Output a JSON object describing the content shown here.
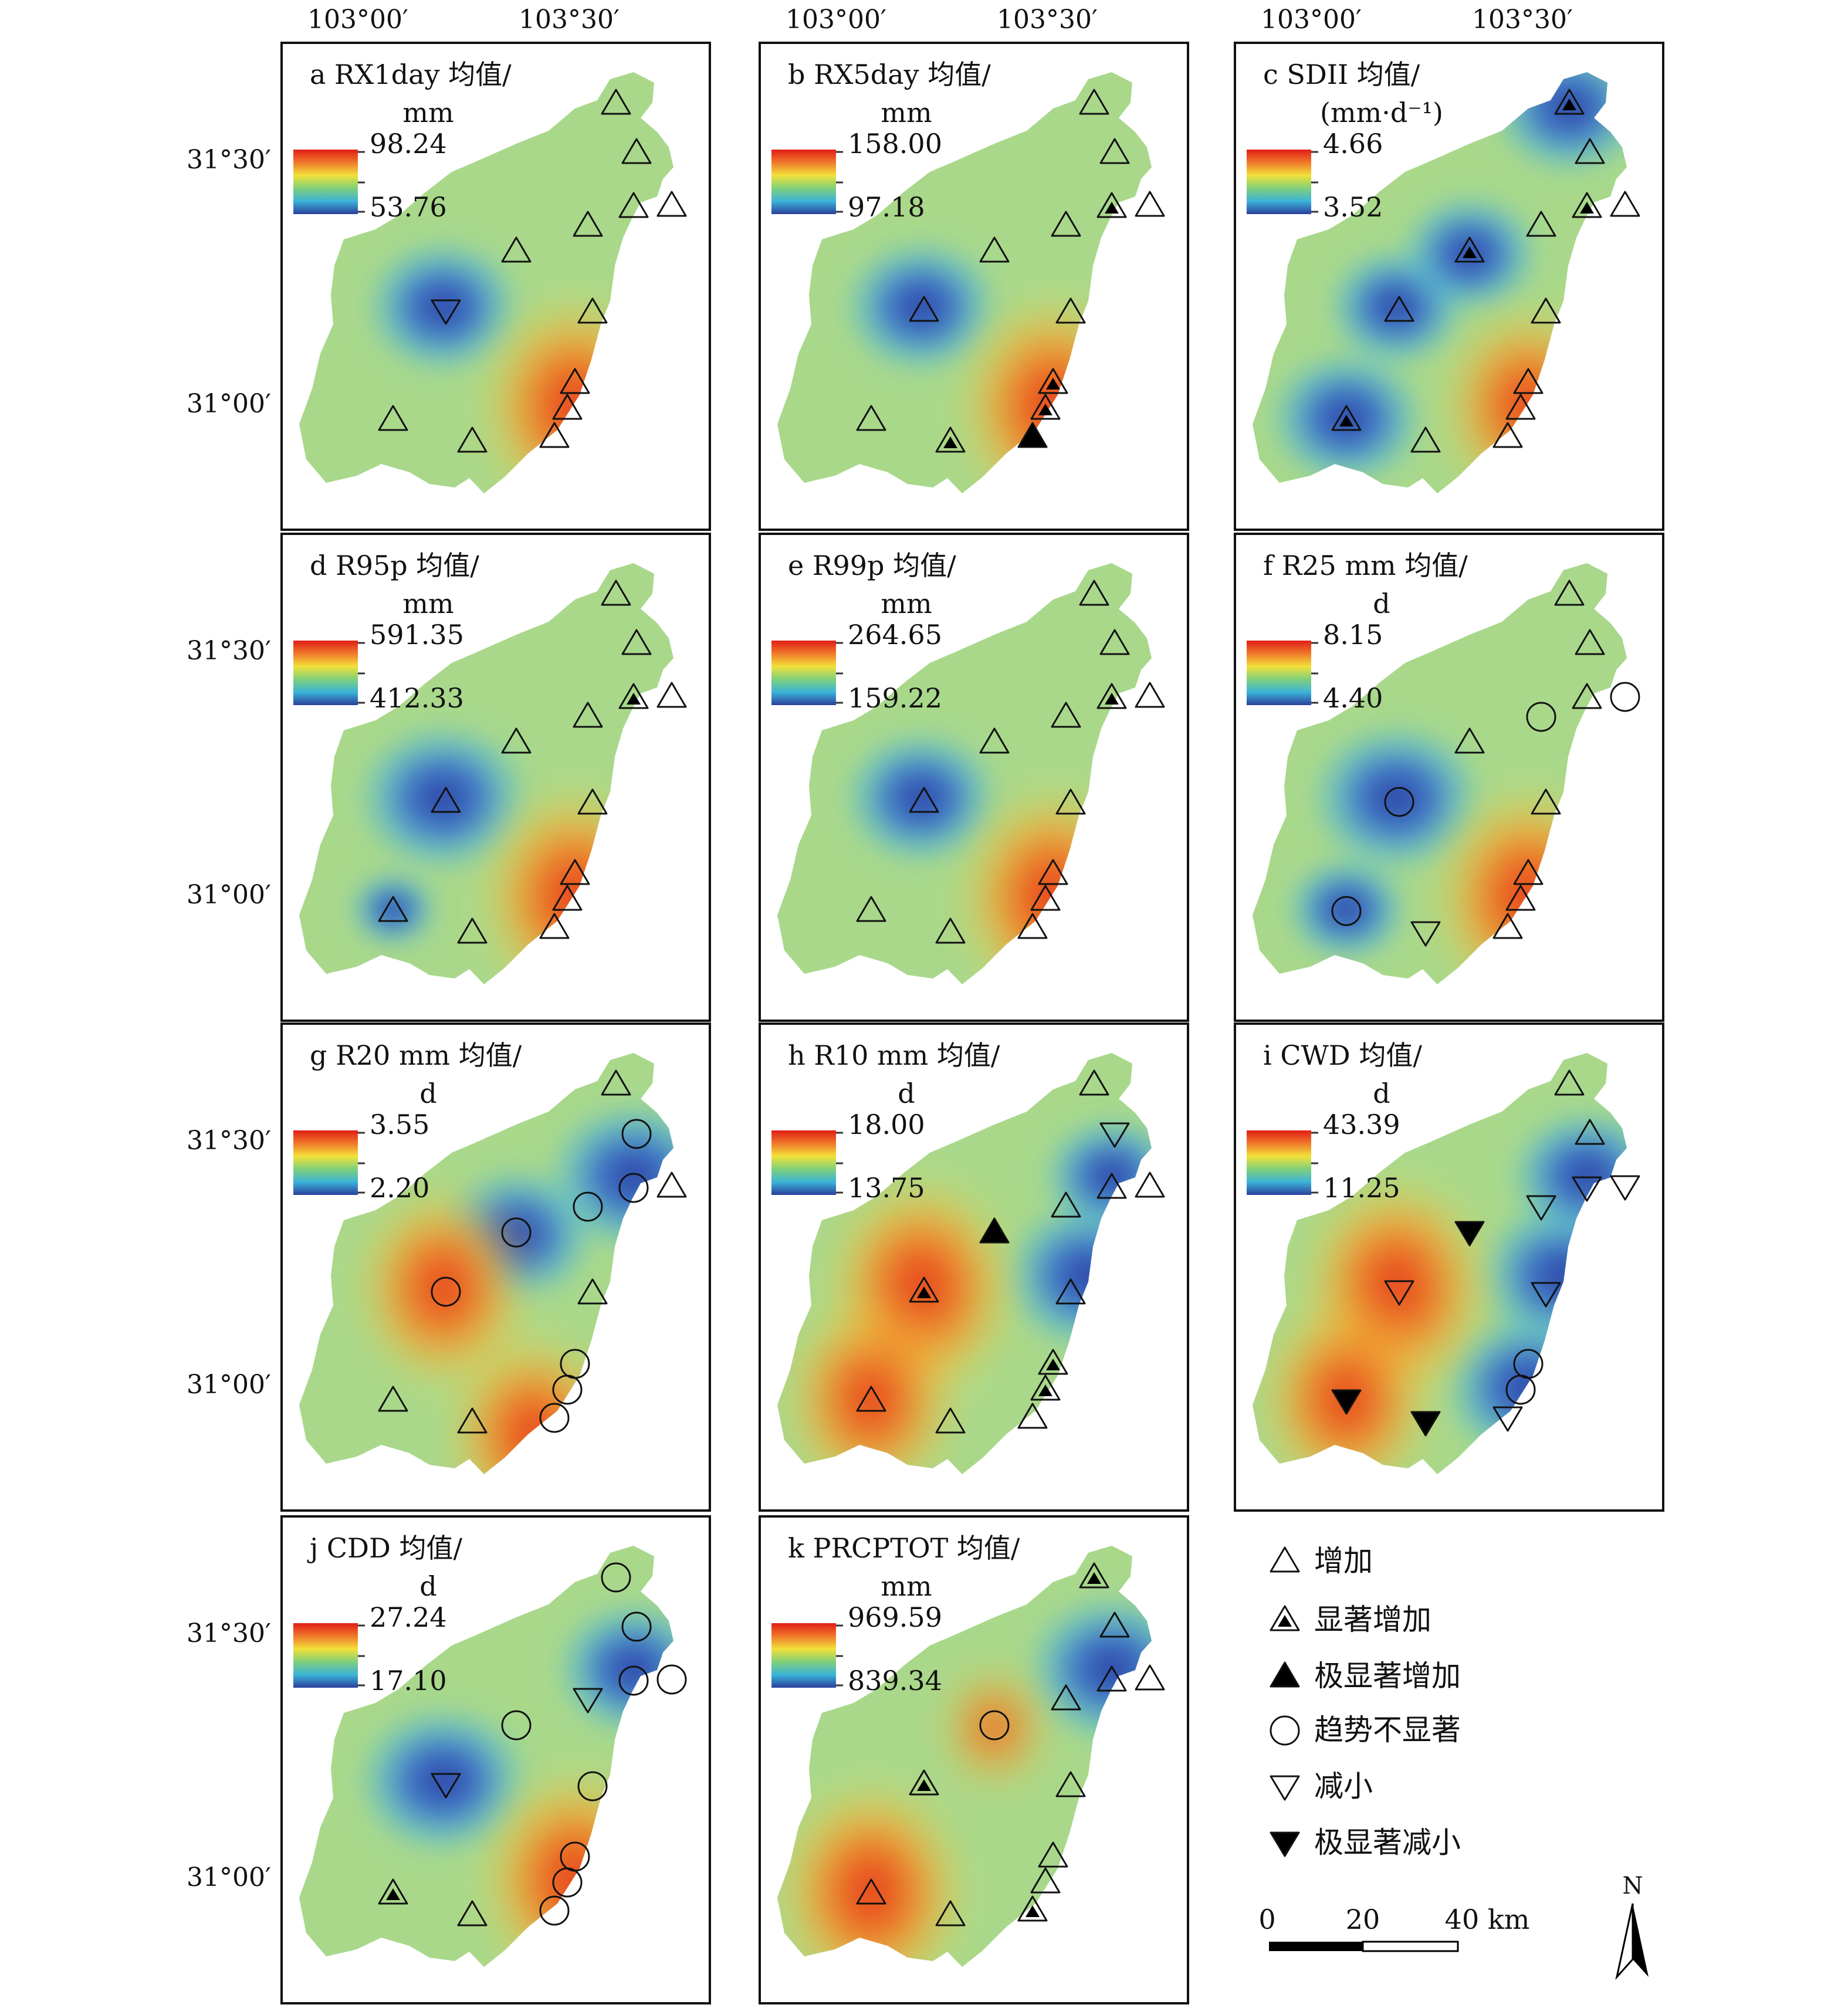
{
  "coord_labels": {
    "lon_top": [
      "103°00′",
      "103°30′"
    ],
    "lat_rows": [
      [
        "31°30′",
        "31°00′"
      ],
      [
        "31°30′",
        "31°00′"
      ],
      [
        "31°30′",
        "31°00′"
      ],
      [
        "31°30′",
        "31°00′"
      ]
    ]
  },
  "panels": [
    {
      "id": "a",
      "title_line1": "a RX1day 均值/",
      "title_line2": "mm",
      "legend_max": "98.24",
      "legend_min": "53.76",
      "stations": [
        "inc",
        "inc",
        "inc",
        "inc",
        "inc",
        "inc",
        "dec",
        "inc",
        "inc",
        "inc",
        "inc",
        "inc",
        "inc"
      ],
      "hot": [
        [
          "se",
          1.0
        ]
      ],
      "cold": [
        [
          "w",
          0.9
        ]
      ]
    },
    {
      "id": "b",
      "title_line1": "b RX5day 均值/",
      "title_line2": "mm",
      "legend_max": "158.00",
      "legend_min": "97.18",
      "stations": [
        "inc",
        "inc",
        "sig",
        "inc",
        "inc",
        "inc",
        "inc",
        "inc",
        "sig",
        "sig",
        "inc",
        "sig",
        "vsig"
      ],
      "hot": [
        [
          "se",
          1.0
        ]
      ],
      "cold": [
        [
          "w",
          0.9
        ]
      ]
    },
    {
      "id": "c",
      "title_line1": "c SDII 均值/",
      "title_line2": "(mm·d⁻¹)",
      "legend_max": "4.66",
      "legend_min": "3.52",
      "stations": [
        "sig",
        "inc",
        "sig",
        "inc",
        "inc",
        "sig",
        "inc",
        "inc",
        "inc",
        "inc",
        "sig",
        "inc",
        "inc"
      ],
      "hot": [
        [
          "se",
          0.9
        ]
      ],
      "cold": [
        [
          "n",
          0.9
        ],
        [
          "w",
          0.8
        ],
        [
          "sw",
          0.9
        ],
        [
          "mid",
          0.8
        ]
      ]
    },
    {
      "id": "d",
      "title_line1": "d R95p 均值/",
      "title_line2": "mm",
      "legend_max": "591.35",
      "legend_min": "412.33",
      "stations": [
        "inc",
        "inc",
        "sig",
        "inc",
        "inc",
        "inc",
        "inc",
        "inc",
        "inc",
        "inc",
        "inc",
        "inc",
        "inc"
      ],
      "hot": [
        [
          "se",
          1.0
        ]
      ],
      "cold": [
        [
          "w",
          1.0
        ],
        [
          "sw",
          0.5
        ]
      ]
    },
    {
      "id": "e",
      "title_line1": "e R99p 均值/",
      "title_line2": "mm",
      "legend_max": "264.65",
      "legend_min": "159.22",
      "stations": [
        "inc",
        "inc",
        "sig",
        "inc",
        "inc",
        "inc",
        "inc",
        "inc",
        "inc",
        "inc",
        "inc",
        "inc",
        "inc"
      ],
      "hot": [
        [
          "se",
          1.0
        ]
      ],
      "cold": [
        [
          "w",
          0.9
        ]
      ]
    },
    {
      "id": "f",
      "title_line1": "f R25 mm 均值/",
      "title_line2": "d",
      "legend_max": "8.15",
      "legend_min": "4.40",
      "stations": [
        "inc",
        "inc",
        "inc",
        "ns",
        "ns",
        "inc",
        "ns",
        "inc",
        "inc",
        "inc",
        "ns",
        "dec",
        "inc"
      ],
      "hot": [
        [
          "se",
          1.0
        ]
      ],
      "cold": [
        [
          "w",
          1.0
        ],
        [
          "sw",
          0.7
        ]
      ]
    },
    {
      "id": "g",
      "title_line1": "g R20 mm 均值/",
      "title_line2": "d",
      "legend_max": "3.55",
      "legend_min": "2.20",
      "stations": [
        "inc",
        "ns",
        "ns",
        "inc",
        "ns",
        "ns",
        "ns",
        "inc",
        "ns",
        "ns",
        "inc",
        "inc",
        "ns"
      ],
      "hot": [
        [
          "w",
          0.9
        ],
        [
          "s",
          0.9
        ]
      ],
      "cold": [
        [
          "ne",
          1.0
        ],
        [
          "mid",
          0.9
        ]
      ]
    },
    {
      "id": "h",
      "title_line1": "h R10 mm 均值/",
      "title_line2": "d",
      "legend_max": "18.00",
      "legend_min": "13.75",
      "stations": [
        "inc",
        "dec",
        "inc",
        "inc",
        "inc",
        "vsig",
        "sig",
        "inc",
        "sig",
        "sig",
        "inc",
        "inc",
        "inc"
      ],
      "hot": [
        [
          "w",
          1.0
        ],
        [
          "sw",
          0.9
        ]
      ],
      "cold": [
        [
          "e",
          1.0
        ],
        [
          "ne",
          0.8
        ]
      ]
    },
    {
      "id": "i",
      "title_line1": "i CWD 均值/",
      "title_line2": "d",
      "legend_max": "43.39",
      "legend_min": "11.25",
      "stations": [
        "inc",
        "inc",
        "dec",
        "dec",
        "dec",
        "vsigdec",
        "dec",
        "dec",
        "ns",
        "ns",
        "vsigdec",
        "vsigdec",
        "dec"
      ],
      "hot": [
        [
          "w",
          1.0
        ],
        [
          "sw",
          0.9
        ]
      ],
      "cold": [
        [
          "e",
          1.0
        ],
        [
          "se",
          1.0
        ],
        [
          "ne",
          0.9
        ]
      ]
    },
    {
      "id": "j",
      "title_line1": "j CDD 均值/",
      "title_line2": "d",
      "legend_max": "27.24",
      "legend_min": "17.10",
      "stations": [
        "ns",
        "ns",
        "ns",
        "ns",
        "dec",
        "ns",
        "dec",
        "ns",
        "ns",
        "ns",
        "sig",
        "inc",
        "ns"
      ],
      "hot": [
        [
          "se",
          1.0
        ]
      ],
      "cold": [
        [
          "ne",
          0.9
        ],
        [
          "w",
          1.0
        ]
      ]
    },
    {
      "id": "k",
      "title_line1": "k PRCPTOT 均值/",
      "title_line2": "mm",
      "legend_max": "969.59",
      "legend_min": "839.34",
      "stations": [
        "sig",
        "inc",
        "inc",
        "inc",
        "inc",
        "ns",
        "sig",
        "inc",
        "inc",
        "inc",
        "inc",
        "inc",
        "sig"
      ],
      "hot": [
        [
          "sw",
          1.0
        ],
        [
          "mid",
          0.5
        ]
      ],
      "cold": [
        [
          "ne",
          1.0
        ]
      ]
    }
  ],
  "key": {
    "items": [
      {
        "symbol": "inc",
        "label": "增加"
      },
      {
        "symbol": "sig",
        "label": "显著增加"
      },
      {
        "symbol": "vsig",
        "label": "极显著增加"
      },
      {
        "symbol": "ns",
        "label": "趋势不显著"
      },
      {
        "symbol": "dec",
        "label": "减小"
      },
      {
        "symbol": "vsigdec",
        "label": "极显著减小"
      }
    ],
    "scale_ticks": [
      "0",
      "20",
      "40 km"
    ],
    "north": "N"
  }
}
